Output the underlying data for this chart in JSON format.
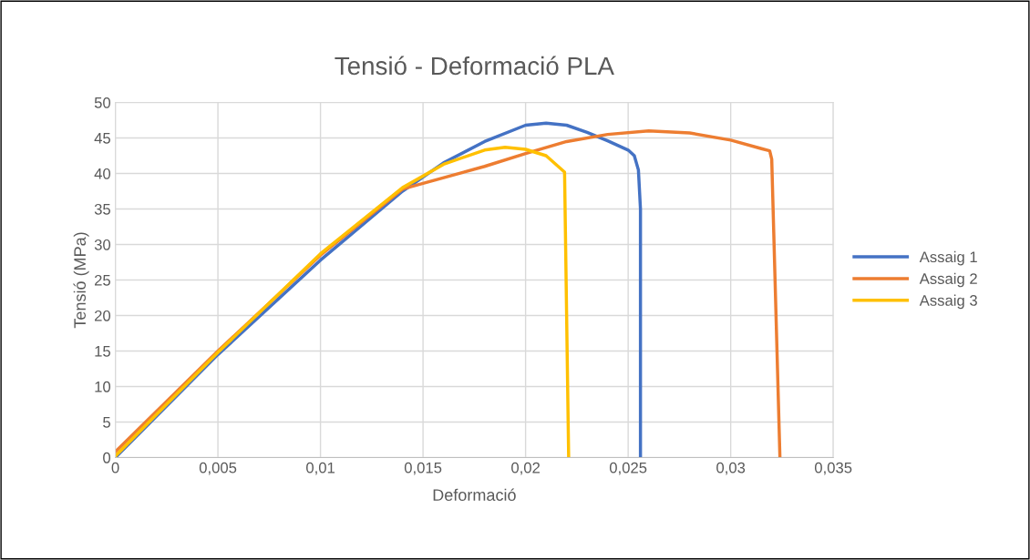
{
  "chart_data": {
    "type": "line",
    "title": "Tensió - Deformació PLA",
    "xlabel": "Deformació",
    "ylabel": "Tensió (MPa)",
    "xlim": [
      0,
      0.035
    ],
    "xticks": [
      0,
      {
        "value": 0.005,
        "label": "0,005"
      },
      {
        "value": 0.01,
        "label": "0,01"
      },
      {
        "value": 0.015,
        "label": "0,015"
      },
      {
        "value": 0.02,
        "label": "0,02"
      },
      {
        "value": 0.025,
        "label": "0,025"
      },
      {
        "value": 0.03,
        "label": "0,03"
      },
      {
        "value": 0.035,
        "label": "0,035"
      }
    ],
    "ylim": [
      0,
      50
    ],
    "yticks": [
      0,
      5,
      10,
      15,
      20,
      25,
      30,
      35,
      40,
      45,
      50
    ],
    "grid": true,
    "legend": "right",
    "marker": "none",
    "line_style": "solid",
    "series": [
      {
        "name": "Assaig 1",
        "color": "#4472c4",
        "x": [
          0,
          0.005,
          0.01,
          0.014,
          0.016,
          0.018,
          0.02,
          0.021,
          0.022,
          0.023,
          0.024,
          0.025,
          0.0253,
          0.0255,
          0.0256,
          0.0256
        ],
        "values": [
          0,
          14.5,
          27.8,
          37.5,
          41.5,
          44.5,
          46.8,
          47.1,
          46.8,
          45.8,
          44.6,
          43.3,
          42.5,
          40.5,
          35,
          0
        ]
      },
      {
        "name": "Assaig 2",
        "color": "#ed7d31",
        "x": [
          0,
          0.005,
          0.01,
          0.014,
          0.015,
          0.018,
          0.02,
          0.022,
          0.024,
          0.026,
          0.028,
          0.03,
          0.0315,
          0.0319,
          0.032,
          0.0324
        ],
        "values": [
          0.8,
          15,
          28.5,
          37.8,
          38.6,
          41,
          42.8,
          44.5,
          45.5,
          46,
          45.7,
          44.7,
          43.5,
          43.2,
          42,
          0
        ]
      },
      {
        "name": "Assaig 3",
        "color": "#ffc000",
        "x": [
          0,
          0.005,
          0.01,
          0.014,
          0.016,
          0.018,
          0.019,
          0.02,
          0.021,
          0.0219,
          0.0221
        ],
        "values": [
          0.2,
          14.8,
          28.7,
          38,
          41.3,
          43.3,
          43.7,
          43.4,
          42.5,
          40.2,
          0
        ]
      }
    ]
  }
}
